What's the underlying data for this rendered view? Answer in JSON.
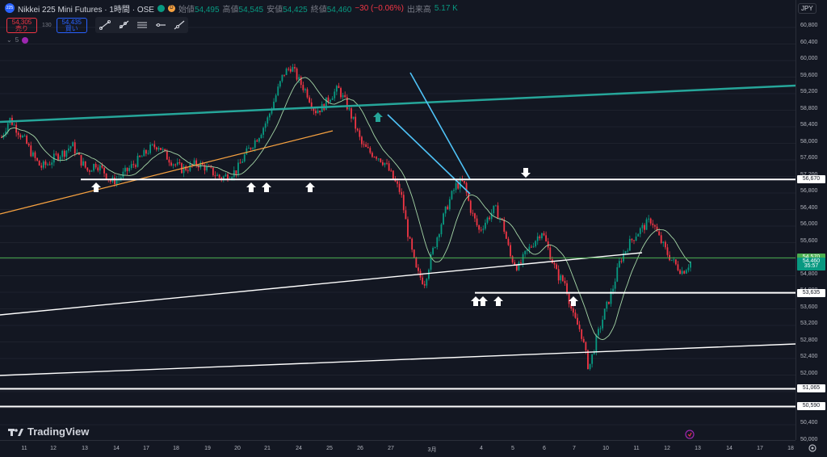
{
  "header": {
    "symbol_logo": "225",
    "title": "Nikkei 225 Mini Futures · 1時間 · OSE",
    "status_d": "D",
    "ohlc": [
      {
        "label": "始値",
        "value": "54,495"
      },
      {
        "label": "高値",
        "value": "54,545"
      },
      {
        "label": "安値",
        "value": "54,425"
      },
      {
        "label": "終値",
        "value": "54,460"
      }
    ],
    "change": "−30 (−0.06%)",
    "volume_label": "出来高",
    "volume": "5.17 K",
    "currency": "JPY"
  },
  "trade": {
    "sell_price": "54,305",
    "sell_label": "売り",
    "spread": "130",
    "buy_price": "54,435",
    "buy_label": "買い"
  },
  "indicator": {
    "label": "5"
  },
  "toolbar": {
    "icons": [
      "trend-line-icon",
      "ray-icon",
      "parallel-channel-icon",
      "horizontal-ray-icon",
      "extended-line-icon"
    ]
  },
  "yaxis": {
    "ticks": [
      "60,800",
      "60,400",
      "60,000",
      "59,600",
      "59,200",
      "58,800",
      "58,400",
      "58,000",
      "57,600",
      "57,200",
      "56,800",
      "56,400",
      "56,000",
      "55,600",
      "55,200",
      "54,800",
      "54,000",
      "53,600",
      "53,200",
      "52,800",
      "52,400",
      "52,000",
      "51,600",
      "51,200",
      "50,400",
      "50,000"
    ],
    "labels": [
      {
        "text": "56,670",
        "value": 56670,
        "bg": "#ffffff",
        "fg": "#131722"
      },
      {
        "text": "54,570",
        "value": 54570,
        "bg": "#4caf50",
        "fg": "#ffffff"
      },
      {
        "text": "54,460",
        "value": 54460,
        "bg": "#089981",
        "fg": "#ffffff"
      },
      {
        "text": "35:57",
        "value": 54340,
        "bg": "#089981",
        "fg": "#ffffff"
      },
      {
        "text": "53,635",
        "value": 53635,
        "bg": "#ffffff",
        "fg": "#131722"
      },
      {
        "text": "51,065",
        "value": 51065,
        "bg": "#ffffff",
        "fg": "#131722"
      },
      {
        "text": "50,590",
        "value": 50590,
        "bg": "#ffffff",
        "fg": "#131722"
      }
    ]
  },
  "xaxis": {
    "ticks": [
      "11",
      "12",
      "13",
      "14",
      "17",
      "18",
      "19",
      "20",
      "21",
      "24",
      "25",
      "26",
      "27",
      "3月",
      "4",
      "5",
      "6",
      "7",
      "10",
      "11",
      "12",
      "13",
      "14",
      "17",
      "18"
    ]
  },
  "branding": {
    "name": "TradingView"
  },
  "colors": {
    "bull": "#089981",
    "bear": "#f23645",
    "ma": "#a5d6a7",
    "channel": "#26a69a",
    "orange_line": "#f7a240",
    "blue_line": "#4fc3f7",
    "level": "#ffffff",
    "green_level": "#4caf50"
  },
  "chart_data": {
    "type": "candlestick",
    "yrange": [
      49800,
      61000
    ],
    "horizontal_levels": [
      56670,
      54570,
      53635,
      51065,
      50590
    ],
    "price_path": [
      57800,
      58300,
      58000,
      57700,
      57300,
      57000,
      57100,
      57300,
      57400,
      57600,
      57200,
      56900,
      57100,
      56900,
      56600,
      56700,
      56900,
      57100,
      57300,
      57500,
      57600,
      57300,
      57100,
      56950,
      57000,
      57100,
      57000,
      56850,
      56700,
      56800,
      56900,
      57300,
      57600,
      57900,
      58300,
      58900,
      59500,
      59700,
      59300,
      59000,
      58500,
      58600,
      58900,
      59100,
      58700,
      58200,
      57600,
      57400,
      57300,
      57100,
      56700,
      56300,
      55100,
      54200,
      53900,
      54700,
      55400,
      56000,
      56500,
      56600,
      55800,
      55300,
      55600,
      55900,
      55500,
      54600,
      54300,
      54700,
      55000,
      55300,
      54700,
      54100,
      53900,
      53000,
      52600,
      51600,
      52400,
      53100,
      53700,
      54500,
      54900,
      55200,
      55400,
      55600,
      55100,
      54700,
      54400,
      54200,
      54460
    ]
  }
}
